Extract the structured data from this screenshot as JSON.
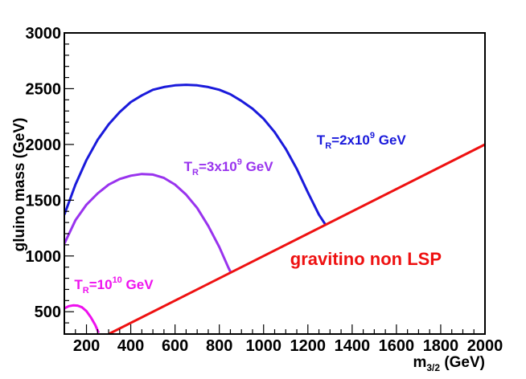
{
  "chart_data": {
    "type": "line",
    "xlabel": {
      "base": "m",
      "sub": "3/2",
      "tail": " (GeV)"
    },
    "ylabel": "gluino mass (GeV)",
    "xlim": [
      100,
      2000
    ],
    "ylim": [
      300,
      3000
    ],
    "x_ticks": [
      200,
      400,
      600,
      800,
      1000,
      1200,
      1400,
      1600,
      1800,
      2000
    ],
    "y_ticks": [
      500,
      1000,
      1500,
      2000,
      2500,
      3000
    ],
    "x_minor_step": 50,
    "y_minor_step": 100,
    "grid": false,
    "legend": "none",
    "series": [
      {
        "key": "tr2e9",
        "color": "#1a1adb",
        "points": [
          [
            100,
            1370
          ],
          [
            150,
            1640
          ],
          [
            200,
            1860
          ],
          [
            250,
            2040
          ],
          [
            300,
            2180
          ],
          [
            350,
            2290
          ],
          [
            400,
            2380
          ],
          [
            450,
            2440
          ],
          [
            500,
            2490
          ],
          [
            550,
            2515
          ],
          [
            600,
            2530
          ],
          [
            650,
            2535
          ],
          [
            700,
            2530
          ],
          [
            750,
            2515
          ],
          [
            800,
            2490
          ],
          [
            850,
            2450
          ],
          [
            900,
            2390
          ],
          [
            950,
            2320
          ],
          [
            1000,
            2230
          ],
          [
            1050,
            2110
          ],
          [
            1100,
            1960
          ],
          [
            1150,
            1780
          ],
          [
            1200,
            1570
          ],
          [
            1250,
            1370
          ],
          [
            1280,
            1280
          ]
        ]
      },
      {
        "key": "tr3e9",
        "color": "#9933ee",
        "points": [
          [
            100,
            1110
          ],
          [
            150,
            1320
          ],
          [
            200,
            1460
          ],
          [
            250,
            1560
          ],
          [
            300,
            1640
          ],
          [
            350,
            1690
          ],
          [
            400,
            1720
          ],
          [
            450,
            1735
          ],
          [
            500,
            1730
          ],
          [
            550,
            1700
          ],
          [
            600,
            1640
          ],
          [
            650,
            1550
          ],
          [
            700,
            1430
          ],
          [
            750,
            1270
          ],
          [
            800,
            1080
          ],
          [
            840,
            900
          ],
          [
            850,
            860
          ]
        ]
      },
      {
        "key": "tr1e10",
        "color": "#ee11ee",
        "points": [
          [
            100,
            530
          ],
          [
            120,
            550
          ],
          [
            140,
            557
          ],
          [
            160,
            555
          ],
          [
            180,
            540
          ],
          [
            200,
            505
          ],
          [
            220,
            450
          ],
          [
            240,
            380
          ],
          [
            255,
            310
          ]
        ]
      },
      {
        "key": "non-lsp",
        "color": "#ee1111",
        "points": [
          [
            300,
            300
          ],
          [
            2000,
            2000
          ]
        ]
      }
    ],
    "annotations": [
      {
        "key": "tr2e9",
        "base": "T",
        "sub": "R",
        "mid": "=2x10",
        "sup": "9",
        "tail": " GeV",
        "color": "#1a1adb",
        "at": [
          1240,
          2000
        ]
      },
      {
        "key": "tr3e9",
        "base": "T",
        "sub": "R",
        "mid": "=3x10",
        "sup": "9",
        "tail": " GeV",
        "color": "#9933ee",
        "at": [
          640,
          1760
        ]
      },
      {
        "key": "tr1e10",
        "base": "T",
        "sub": "R",
        "mid": "=10",
        "sup": "10",
        "tail": " GeV",
        "color": "#ee11ee",
        "at": [
          145,
          705
        ]
      },
      {
        "key": "non-lsp",
        "text": "gravitino non LSP",
        "color": "#ee1111",
        "at": [
          1120,
          920
        ]
      }
    ]
  }
}
